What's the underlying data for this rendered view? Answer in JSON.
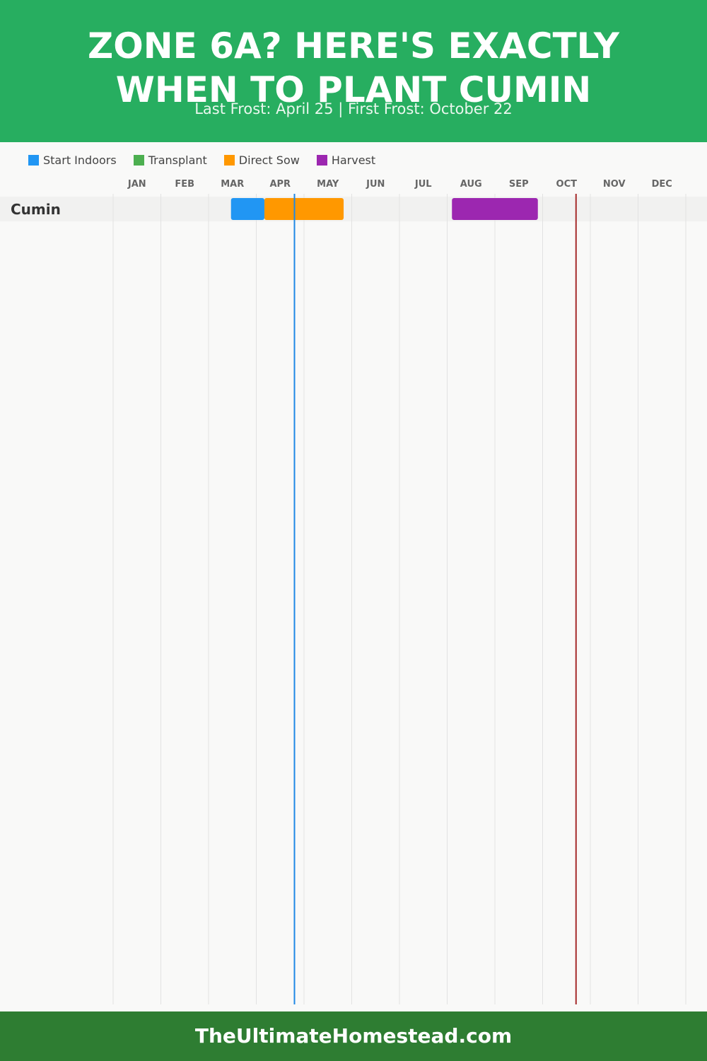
{
  "header": {
    "title_line1": "ZONE 6A? HERE'S EXACTLY",
    "title_line2": "WHEN TO PLANT CUMIN",
    "subtitle": "Last Frost: April 25 | First Frost: October 22"
  },
  "legend": [
    {
      "label": "Start Indoors",
      "color": "#2196f3"
    },
    {
      "label": "Transplant",
      "color": "#4caf50"
    },
    {
      "label": "Direct Sow",
      "color": "#ff9800"
    },
    {
      "label": "Harvest",
      "color": "#9c27b0"
    }
  ],
  "chart_data": {
    "type": "gantt",
    "months": [
      "JAN",
      "FEB",
      "MAR",
      "APR",
      "MAY",
      "JUN",
      "JUL",
      "AUG",
      "SEP",
      "OCT",
      "NOV",
      "DEC"
    ],
    "rows": [
      {
        "crop": "Cumin",
        "bars": [
          {
            "phase": "Start Indoors",
            "start": "Mar 15",
            "end": "Apr 6",
            "start_month": 2.47,
            "end_month": 3.17,
            "color": "#2196f3"
          },
          {
            "phase": "Direct Sow",
            "start": "Apr 6",
            "end": "May 26",
            "start_month": 3.17,
            "end_month": 4.83,
            "color": "#ff9800"
          },
          {
            "phase": "Harvest",
            "start": "Aug 3",
            "end": "Sep 24",
            "start_month": 7.1,
            "end_month": 8.9,
            "color": "#9c27b0"
          }
        ]
      }
    ],
    "markers": [
      {
        "name": "Last Frost",
        "date": "April 25",
        "month": 3.8,
        "color": "#1e88e5"
      },
      {
        "name": "First Frost",
        "date": "October 22",
        "month": 9.7,
        "color": "#a52a2a"
      }
    ]
  },
  "footer": {
    "site": "TheUltimateHomestead.com"
  }
}
